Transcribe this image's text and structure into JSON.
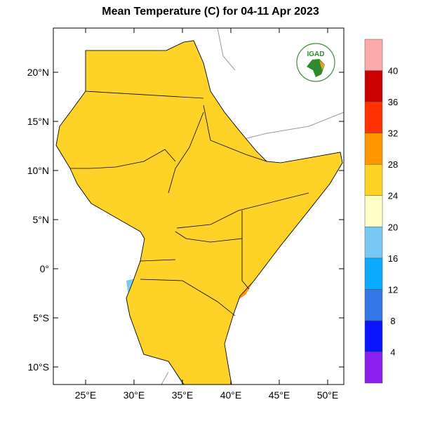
{
  "title": "Mean Temperature (C) for 04-11 Apr 2023",
  "logo_text": "IGAD",
  "map": {
    "lon_range": [
      21.7,
      51.7
    ],
    "lat_range": [
      -11.8,
      24.5
    ],
    "x_ticks": [
      {
        "lon": 25,
        "label": "25°E"
      },
      {
        "lon": 30,
        "label": "30°E"
      },
      {
        "lon": 35,
        "label": "35°E"
      },
      {
        "lon": 40,
        "label": "40°E"
      },
      {
        "lon": 45,
        "label": "45°E"
      },
      {
        "lon": 50,
        "label": "50°E"
      }
    ],
    "y_ticks": [
      {
        "lat": 20,
        "label": "20°N"
      },
      {
        "lat": 15,
        "label": "15°N"
      },
      {
        "lat": 10,
        "label": "10°N"
      },
      {
        "lat": 5,
        "label": "5°N"
      },
      {
        "lat": 0,
        "label": "0°"
      },
      {
        "lat": -5,
        "label": "5°S"
      },
      {
        "lat": -10,
        "label": "10°S"
      }
    ]
  },
  "colorbar": {
    "labels": [
      "4",
      "8",
      "12",
      "16",
      "20",
      "24",
      "28",
      "32",
      "36",
      "40"
    ],
    "colors": [
      "#8a1ff0",
      "#0a14ff",
      "#3278e6",
      "#0aaaff",
      "#78c8f5",
      "#ffffc8",
      "#ffd228",
      "#ff9600",
      "#ff3200",
      "#cc0000",
      "#ffaaaa"
    ]
  }
}
